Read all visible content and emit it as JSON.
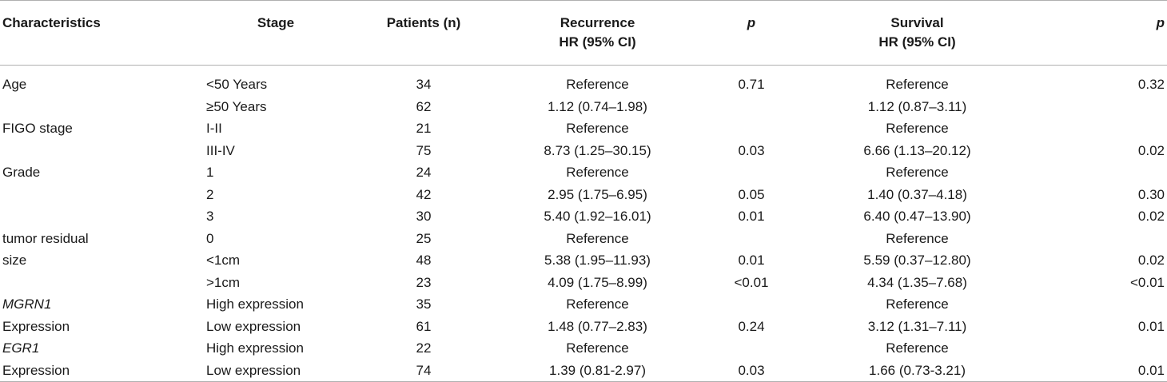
{
  "headers": [
    {
      "label": "Characteristics",
      "italic": false
    },
    {
      "label": "Stage",
      "italic": false
    },
    {
      "label": "Patients (n)",
      "italic": false
    },
    {
      "label": "Recurrence\nHR (95% CI)",
      "italic": false
    },
    {
      "label": "p",
      "italic": true
    },
    {
      "label": "Survival\nHR (95% CI)",
      "italic": false
    },
    {
      "label": "p",
      "italic": true
    }
  ],
  "rows": [
    {
      "characteristic": "Age",
      "char_italic": false,
      "stage": "<50 Years",
      "patients": "34",
      "recurrence_hr": "Reference",
      "recurrence_p": "0.71",
      "survival_hr": "Reference",
      "survival_p": "0.32"
    },
    {
      "characteristic": "",
      "char_italic": false,
      "stage": "≥50 Years",
      "patients": "62",
      "recurrence_hr": "1.12 (0.74–1.98)",
      "recurrence_p": "",
      "survival_hr": "1.12 (0.87–3.11)",
      "survival_p": ""
    },
    {
      "characteristic": "FIGO stage",
      "char_italic": false,
      "stage": "I-II",
      "patients": "21",
      "recurrence_hr": "Reference",
      "recurrence_p": "",
      "survival_hr": "Reference",
      "survival_p": ""
    },
    {
      "characteristic": "",
      "char_italic": false,
      "stage": "III-IV",
      "patients": "75",
      "recurrence_hr": "8.73 (1.25–30.15)",
      "recurrence_p": "0.03",
      "survival_hr": "6.66 (1.13–20.12)",
      "survival_p": "0.02"
    },
    {
      "characteristic": "Grade",
      "char_italic": false,
      "stage": "1",
      "patients": "24",
      "recurrence_hr": "Reference",
      "recurrence_p": "",
      "survival_hr": "Reference",
      "survival_p": ""
    },
    {
      "characteristic": "",
      "char_italic": false,
      "stage": "2",
      "patients": "42",
      "recurrence_hr": "2.95 (1.75–6.95)",
      "recurrence_p": "0.05",
      "survival_hr": "1.40 (0.37–4.18)",
      "survival_p": "0.30"
    },
    {
      "characteristic": "",
      "char_italic": false,
      "stage": "3",
      "patients": "30",
      "recurrence_hr": "5.40 (1.92–16.01)",
      "recurrence_p": "0.01",
      "survival_hr": "6.40 (0.47–13.90)",
      "survival_p": "0.02"
    },
    {
      "characteristic": "tumor residual",
      "char_italic": false,
      "stage": "0",
      "patients": "25",
      "recurrence_hr": "Reference",
      "recurrence_p": "",
      "survival_hr": "Reference",
      "survival_p": ""
    },
    {
      "characteristic": "size",
      "char_italic": false,
      "stage": "<1cm",
      "patients": "48",
      "recurrence_hr": "5.38 (1.95–11.93)",
      "recurrence_p": "0.01",
      "survival_hr": "5.59 (0.37–12.80)",
      "survival_p": "0.02"
    },
    {
      "characteristic": "",
      "char_italic": false,
      "stage": ">1cm",
      "patients": "23",
      "recurrence_hr": "4.09 (1.75–8.99)",
      "recurrence_p": "<0.01",
      "survival_hr": "4.34 (1.35–7.68)",
      "survival_p": "<0.01"
    },
    {
      "characteristic": "MGRN1",
      "char_italic": true,
      "stage": "High expression",
      "patients": "35",
      "recurrence_hr": "Reference",
      "recurrence_p": "",
      "survival_hr": "Reference",
      "survival_p": ""
    },
    {
      "characteristic": "Expression",
      "char_italic": false,
      "stage": "Low expression",
      "patients": "61",
      "recurrence_hr": "1.48 (0.77–2.83)",
      "recurrence_p": "0.24",
      "survival_hr": "3.12 (1.31–7.11)",
      "survival_p": "0.01"
    },
    {
      "characteristic": "EGR1",
      "char_italic": true,
      "stage": "High expression",
      "patients": "22",
      "recurrence_hr": "Reference",
      "recurrence_p": "",
      "survival_hr": "Reference",
      "survival_p": ""
    },
    {
      "characteristic": "Expression",
      "char_italic": false,
      "stage": "Low expression",
      "patients": "74",
      "recurrence_hr": "1.39 (0.81-2.97)",
      "recurrence_p": "0.03",
      "survival_hr": "1.66 (0.73-3.21)",
      "survival_p": "0.01"
    }
  ]
}
